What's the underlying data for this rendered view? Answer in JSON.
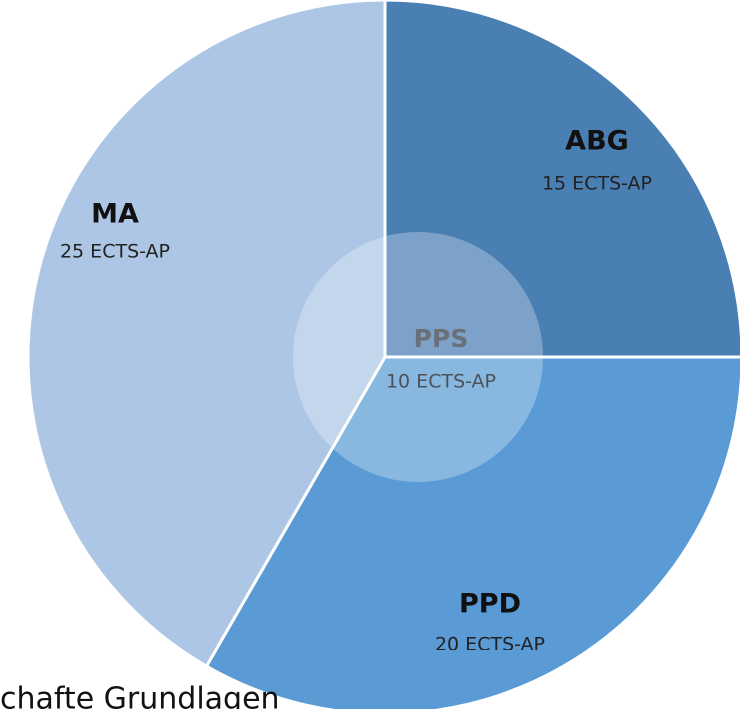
{
  "chart_data": {
    "type": "pie",
    "categories": [
      "ABG",
      "PPD",
      "MA"
    ],
    "values": [
      15,
      20,
      25
    ],
    "value_labels": [
      "15 ECTS-AP",
      "20 ECTS-AP",
      "25 ECTS-AP"
    ],
    "colors": [
      "#4a7fb4",
      "#5b9bd5",
      "#adc6e5"
    ],
    "center": {
      "label": "PPS",
      "value": 10,
      "value_label": "10 ECTS-AP"
    },
    "caption": "chafte Grundlagen"
  }
}
